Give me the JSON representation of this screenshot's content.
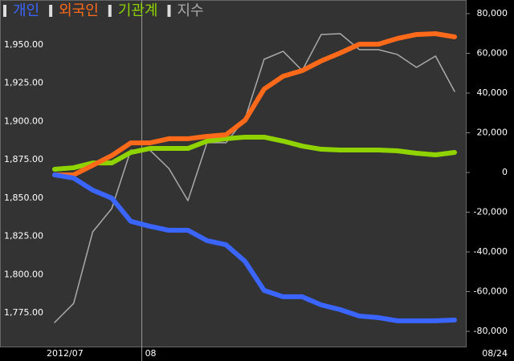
{
  "chart_data": {
    "type": "line",
    "categories": [
      "2012/07",
      null,
      null,
      null,
      null,
      "08",
      null,
      null,
      null,
      null,
      null,
      null,
      null,
      null,
      null,
      null,
      null,
      null,
      null,
      null,
      null,
      "08/24"
    ],
    "series": [
      {
        "name": "개인",
        "color": "#3a66ff",
        "axis": "y2",
        "values": [
          -1200,
          -2800,
          -8900,
          -12900,
          -24600,
          -27100,
          -29100,
          -29100,
          -34300,
          -36400,
          -44800,
          -59400,
          -62600,
          -62600,
          -66700,
          -69100,
          -72300,
          -73100,
          -74700,
          -74700,
          -74700,
          -74300
        ]
      },
      {
        "name": "외국인",
        "color": "#ff6a1a",
        "axis": "y2",
        "values": [
          -1200,
          -1200,
          3600,
          8500,
          14900,
          14900,
          17000,
          17000,
          18200,
          19000,
          26300,
          42000,
          48500,
          51300,
          56200,
          60200,
          64600,
          64600,
          67500,
          69500,
          69900,
          68300
        ]
      },
      {
        "name": "기관계",
        "color": "#8fd400",
        "axis": "y2",
        "values": [
          1600,
          2400,
          4800,
          4800,
          10100,
          12100,
          12100,
          12100,
          15800,
          17000,
          17800,
          17800,
          15800,
          13300,
          11700,
          11300,
          11300,
          11300,
          10900,
          9700,
          8900,
          10100
        ]
      },
      {
        "name": "지수",
        "color": "#aaaaaa",
        "values": [
          1768.7,
          1781.2,
          1827.9,
          1843.1,
          1881.3,
          1881.3,
          1869.3,
          1848.3,
          1886.1,
          1886.1,
          1901.8,
          1940.6,
          1945.8,
          1933.2,
          1956.8,
          1957.3,
          1946.9,
          1946.9,
          1943.7,
          1935.3,
          1942.7,
          1919.6
        ]
      }
    ],
    "ylim": [
      1753,
      1979.3
    ],
    "yticks": [
      {
        "value": 1775,
        "label": "1,775.00"
      },
      {
        "value": 1800,
        "label": "1,800.00"
      },
      {
        "value": 1825,
        "label": "1,825.00"
      },
      {
        "value": 1850,
        "label": "1,850.00"
      },
      {
        "value": 1875,
        "label": "1,875.00"
      },
      {
        "value": 1900,
        "label": "1,900.00"
      },
      {
        "value": 1925,
        "label": "1,925.00"
      },
      {
        "value": 1950,
        "label": "1,950.00"
      }
    ],
    "y2lim": [
      -87680,
      86870
    ],
    "y2ticks": [
      {
        "value": -80000,
        "label": "-80,000"
      },
      {
        "value": -60000,
        "label": "-60,000"
      },
      {
        "value": -40000,
        "label": "-40,000"
      },
      {
        "value": -20000,
        "label": "-20,000"
      },
      0,
      {
        "value": 20000,
        "label": "20,000"
      },
      {
        "value": 40000,
        "label": "40,000"
      },
      {
        "value": 60000,
        "label": "60,000"
      },
      {
        "value": 80000,
        "label": "80,000"
      }
    ],
    "grid": false,
    "legend": "top-left"
  }
}
